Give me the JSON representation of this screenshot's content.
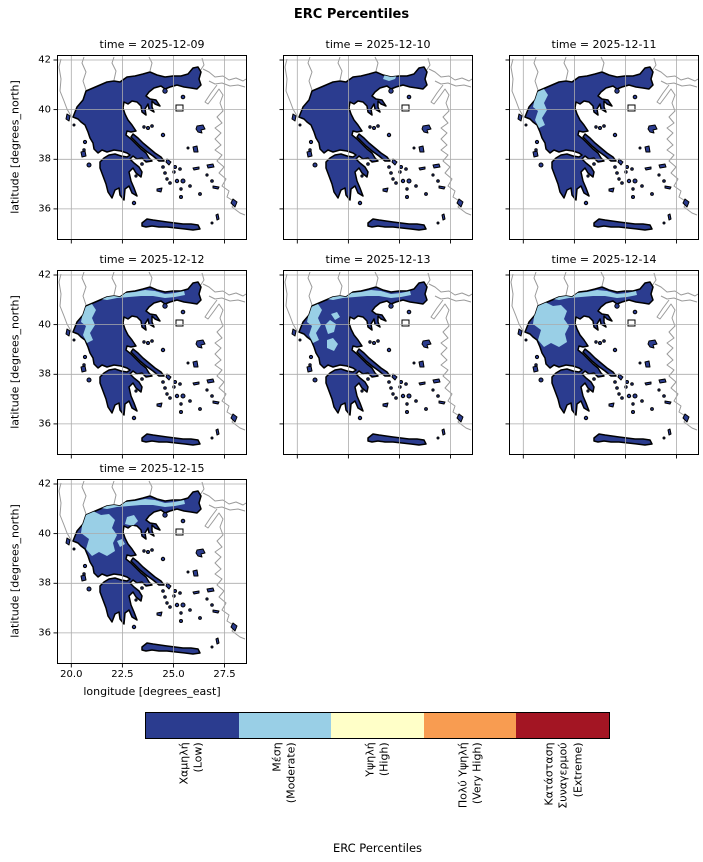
{
  "figure": {
    "title": "ERC Percentiles"
  },
  "axes": {
    "ylabel": "latitude [degrees_north]",
    "xlabel": "longitude [degrees_east]",
    "yticks": [
      "42",
      "40",
      "38",
      "36"
    ],
    "xticks": [
      "20.0",
      "22.5",
      "25.0",
      "27.5"
    ]
  },
  "panels": [
    {
      "title": "time = 2025-12-09",
      "moderate_regions": []
    },
    {
      "title": "time = 2025-12-10",
      "moderate_regions": [
        "north-spot"
      ]
    },
    {
      "title": "time = 2025-12-11",
      "moderate_regions": [
        "nw-strip"
      ]
    },
    {
      "title": "time = 2025-12-12",
      "moderate_regions": [
        "nw-strip",
        "north-band"
      ]
    },
    {
      "title": "time = 2025-12-13",
      "moderate_regions": [
        "nw-strip",
        "north-band",
        "west-blob"
      ]
    },
    {
      "title": "time = 2025-12-14",
      "moderate_regions": [
        "nw-large",
        "north-band"
      ]
    },
    {
      "title": "time = 2025-12-15",
      "moderate_regions": [
        "nw-large",
        "north-band",
        "center-spot"
      ]
    }
  ],
  "colorbar": {
    "title": "ERC Percentiles",
    "categories": [
      {
        "label_native": "Χαμηλή",
        "label_en": "(Low)",
        "color": "#2b3c8f"
      },
      {
        "label_native": "Μέση",
        "label_en": "(Moderate)",
        "color": "#99cfe6"
      },
      {
        "label_native": "Υψηλή",
        "label_en": "(High)",
        "color": "#ffffc8"
      },
      {
        "label_native": "Πολύ Υψηλή",
        "label_en": "(Very High)",
        "color": "#f89c51"
      },
      {
        "label_native": "Κατάσταση\nΣυναγερμού",
        "label_en": "(Extreme)",
        "color": "#a31523"
      }
    ]
  },
  "chart_data": {
    "type": "heatmap",
    "subtype": "faceted categorical choropleth maps of Greece (fire danger ERC percentile classes)",
    "title": "ERC Percentiles",
    "facet_titles": [
      "time = 2025-12-09",
      "time = 2025-12-10",
      "time = 2025-12-11",
      "time = 2025-12-12",
      "time = 2025-12-13",
      "time = 2025-12-14",
      "time = 2025-12-15"
    ],
    "x_axis": {
      "label": "longitude [degrees_east]",
      "ticks": [
        20.0,
        22.5,
        25.0,
        27.5
      ],
      "range": [
        19.3,
        28.6
      ]
    },
    "y_axis": {
      "label": "latitude [degrees_north]",
      "ticks": [
        36,
        38,
        40,
        42
      ],
      "range": [
        34.75,
        42.2
      ]
    },
    "color_classes": [
      {
        "label": "Χαμηλή (Low)",
        "color": "#2b3c8f"
      },
      {
        "label": "Μέση (Moderate)",
        "color": "#99cfe6"
      },
      {
        "label": "Υψηλή (High)",
        "color": "#ffffc8"
      },
      {
        "label": "Πολύ Υψηλή (Very High)",
        "color": "#f89c51"
      },
      {
        "label": "Κατάσταση Συναγερμού (Extreme)",
        "color": "#a31523"
      }
    ],
    "facets": [
      {
        "time": "2025-12-09",
        "dominant_class": "Low",
        "moderate_extent": "none visible"
      },
      {
        "time": "2025-12-10",
        "dominant_class": "Low",
        "moderate_extent": "small spot in central Macedonia along the northern border"
      },
      {
        "time": "2025-12-11",
        "dominant_class": "Low",
        "moderate_extent": "strip over Epirus (north-west Greece)"
      },
      {
        "time": "2025-12-12",
        "dominant_class": "Low",
        "moderate_extent": "Epirus strip plus thin band along northern border"
      },
      {
        "time": "2025-12-13",
        "dominant_class": "Low",
        "moderate_extent": "north-west strip, northern band and scattered west-central patches"
      },
      {
        "time": "2025-12-14",
        "dominant_class": "Low",
        "moderate_extent": "large contiguous region over north-west Greece"
      },
      {
        "time": "2025-12-15",
        "dominant_class": "Low",
        "moderate_extent": "large north-west region plus central-north patches"
      }
    ],
    "grid": true,
    "legend_position": "horizontal categorical colorbar at bottom",
    "notes": "Only Low and Moderate classes appear on the maps; High, Very High and Extreme appear only in the colorbar."
  }
}
